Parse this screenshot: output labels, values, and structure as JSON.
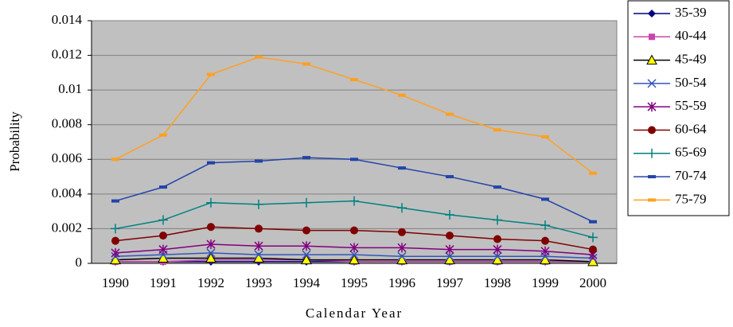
{
  "chart_data": {
    "type": "line",
    "x_label": "Calendar Year",
    "y_label": "Probability",
    "categories": [
      "1990",
      "1991",
      "1992",
      "1993",
      "1994",
      "1995",
      "1996",
      "1997",
      "1998",
      "1999",
      "2000"
    ],
    "ylim": [
      0,
      0.014
    ],
    "yticks": [
      0,
      0.002,
      0.004,
      0.006,
      0.008,
      0.01,
      0.012,
      0.014
    ],
    "grid": true,
    "legend": "right",
    "series": [
      {
        "name": "35-39",
        "color": "#000080",
        "marker": "diamond",
        "values": [
          0.0001,
          0.0001,
          0.0001,
          0.0001,
          0.0001,
          0.0001,
          0.0001,
          0.0001,
          0.0001,
          0.0001,
          0.0001
        ]
      },
      {
        "name": "40-44",
        "color": "#cc44aa",
        "marker": "square",
        "values": [
          0.0001,
          0.0001,
          0.0002,
          0.0002,
          0.0002,
          0.0001,
          0.0001,
          0.0001,
          0.0001,
          0.0001,
          0.0001
        ]
      },
      {
        "name": "45-49",
        "color": "#000000",
        "marker": "triangle",
        "values": [
          0.0002,
          0.0003,
          0.0003,
          0.0003,
          0.0002,
          0.0002,
          0.0002,
          0.0002,
          0.0002,
          0.0002,
          0.0001
        ]
      },
      {
        "name": "50-54",
        "color": "#3355bb",
        "marker": "x",
        "values": [
          0.0004,
          0.0005,
          0.0006,
          0.0005,
          0.0005,
          0.0005,
          0.0004,
          0.0004,
          0.0004,
          0.0004,
          0.0003
        ]
      },
      {
        "name": "55-59",
        "color": "#800080",
        "marker": "star",
        "values": [
          0.0006,
          0.0008,
          0.0011,
          0.001,
          0.001,
          0.0009,
          0.0009,
          0.0008,
          0.0008,
          0.0007,
          0.0005
        ]
      },
      {
        "name": "60-64",
        "color": "#800000",
        "marker": "circle",
        "values": [
          0.0013,
          0.0016,
          0.0021,
          0.002,
          0.0019,
          0.0019,
          0.0018,
          0.0016,
          0.0014,
          0.0013,
          0.0008
        ]
      },
      {
        "name": "65-69",
        "color": "#008080",
        "marker": "plus",
        "values": [
          0.002,
          0.0025,
          0.0035,
          0.0034,
          0.0035,
          0.0036,
          0.0032,
          0.0028,
          0.0025,
          0.0022,
          0.0015
        ]
      },
      {
        "name": "70-74",
        "color": "#2244aa",
        "marker": "dash",
        "values": [
          0.0036,
          0.0044,
          0.0058,
          0.0059,
          0.0061,
          0.006,
          0.0055,
          0.005,
          0.0044,
          0.0037,
          0.0024
        ]
      },
      {
        "name": "75-79",
        "color": "#ffa020",
        "marker": "dash",
        "values": [
          0.006,
          0.0074,
          0.0109,
          0.0119,
          0.0115,
          0.0106,
          0.0097,
          0.0086,
          0.0077,
          0.0073,
          0.0052
        ]
      }
    ]
  }
}
